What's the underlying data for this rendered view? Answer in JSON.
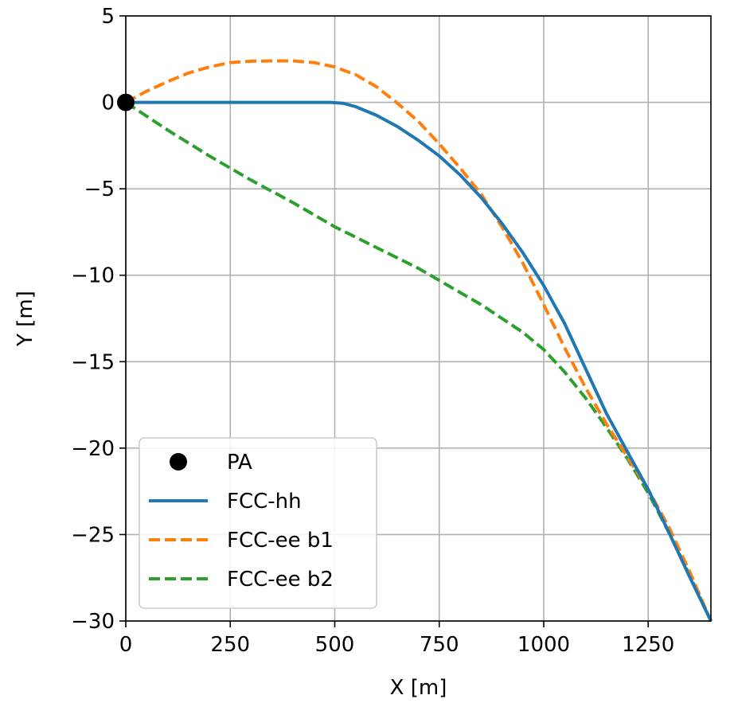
{
  "chart_data": {
    "type": "line",
    "title": "",
    "xlabel": "X [m]",
    "ylabel": "Y [m]",
    "xlim": [
      0,
      1400
    ],
    "ylim": [
      -30,
      5
    ],
    "xticks": [
      0,
      250,
      500,
      750,
      1000,
      1250
    ],
    "yticks": [
      5,
      0,
      -5,
      -10,
      -15,
      -20,
      -25,
      -30
    ],
    "xtick_labels": [
      "0",
      "250",
      "500",
      "750",
      "1000",
      "1250"
    ],
    "ytick_labels": [
      "5",
      "0",
      "−5",
      "−10",
      "−15",
      "−20",
      "−25",
      "−30"
    ],
    "grid": true,
    "legend_position": "lower-left",
    "series": [
      {
        "name": "PA",
        "style": "marker",
        "color": "#000000",
        "x": [
          0
        ],
        "y": [
          0
        ]
      },
      {
        "name": "FCC-hh",
        "style": "solid",
        "color": "#1f77b4",
        "x": [
          0,
          100,
          200,
          300,
          400,
          490,
          520,
          550,
          600,
          650,
          700,
          750,
          800,
          850,
          900,
          950,
          1000,
          1050,
          1100,
          1150,
          1200,
          1250,
          1300,
          1350,
          1400
        ],
        "y": [
          0,
          0,
          0,
          0,
          0,
          0,
          -0.05,
          -0.25,
          -0.75,
          -1.4,
          -2.2,
          -3.1,
          -4.2,
          -5.5,
          -7.0,
          -8.7,
          -10.6,
          -12.8,
          -15.4,
          -18.0,
          -20.2,
          -22.4,
          -24.9,
          -27.5,
          -30.0
        ]
      },
      {
        "name": "FCC-ee b1",
        "style": "dashed",
        "color": "#ff7f0e",
        "x": [
          0,
          50,
          100,
          150,
          200,
          250,
          300,
          350,
          400,
          450,
          500,
          550,
          600,
          650,
          700,
          750,
          800,
          850,
          900,
          950,
          1000,
          1050,
          1100,
          1150,
          1200,
          1250,
          1300,
          1350,
          1400
        ],
        "y": [
          0,
          0.65,
          1.2,
          1.7,
          2.05,
          2.3,
          2.38,
          2.4,
          2.4,
          2.3,
          2.05,
          1.6,
          0.9,
          -0.05,
          -1.1,
          -2.4,
          -3.8,
          -5.3,
          -7.2,
          -9.3,
          -11.7,
          -14.2,
          -16.5,
          -18.6,
          -20.5,
          -22.4,
          -24.6,
          -27.2,
          -30.0
        ]
      },
      {
        "name": "FCC-ee b2",
        "style": "dashed",
        "color": "#2ca02c",
        "x": [
          0,
          100,
          200,
          300,
          400,
          500,
          550,
          600,
          650,
          700,
          750,
          800,
          850,
          900,
          950,
          1000,
          1050,
          1100,
          1150,
          1200,
          1250,
          1300,
          1350,
          1400
        ],
        "y": [
          0,
          -1.6,
          -3.1,
          -4.5,
          -5.8,
          -7.2,
          -7.8,
          -8.4,
          -9.0,
          -9.6,
          -10.3,
          -11.0,
          -11.7,
          -12.5,
          -13.3,
          -14.3,
          -15.6,
          -17.1,
          -18.8,
          -20.6,
          -22.6,
          -24.9,
          -27.4,
          -30.0
        ]
      }
    ]
  }
}
